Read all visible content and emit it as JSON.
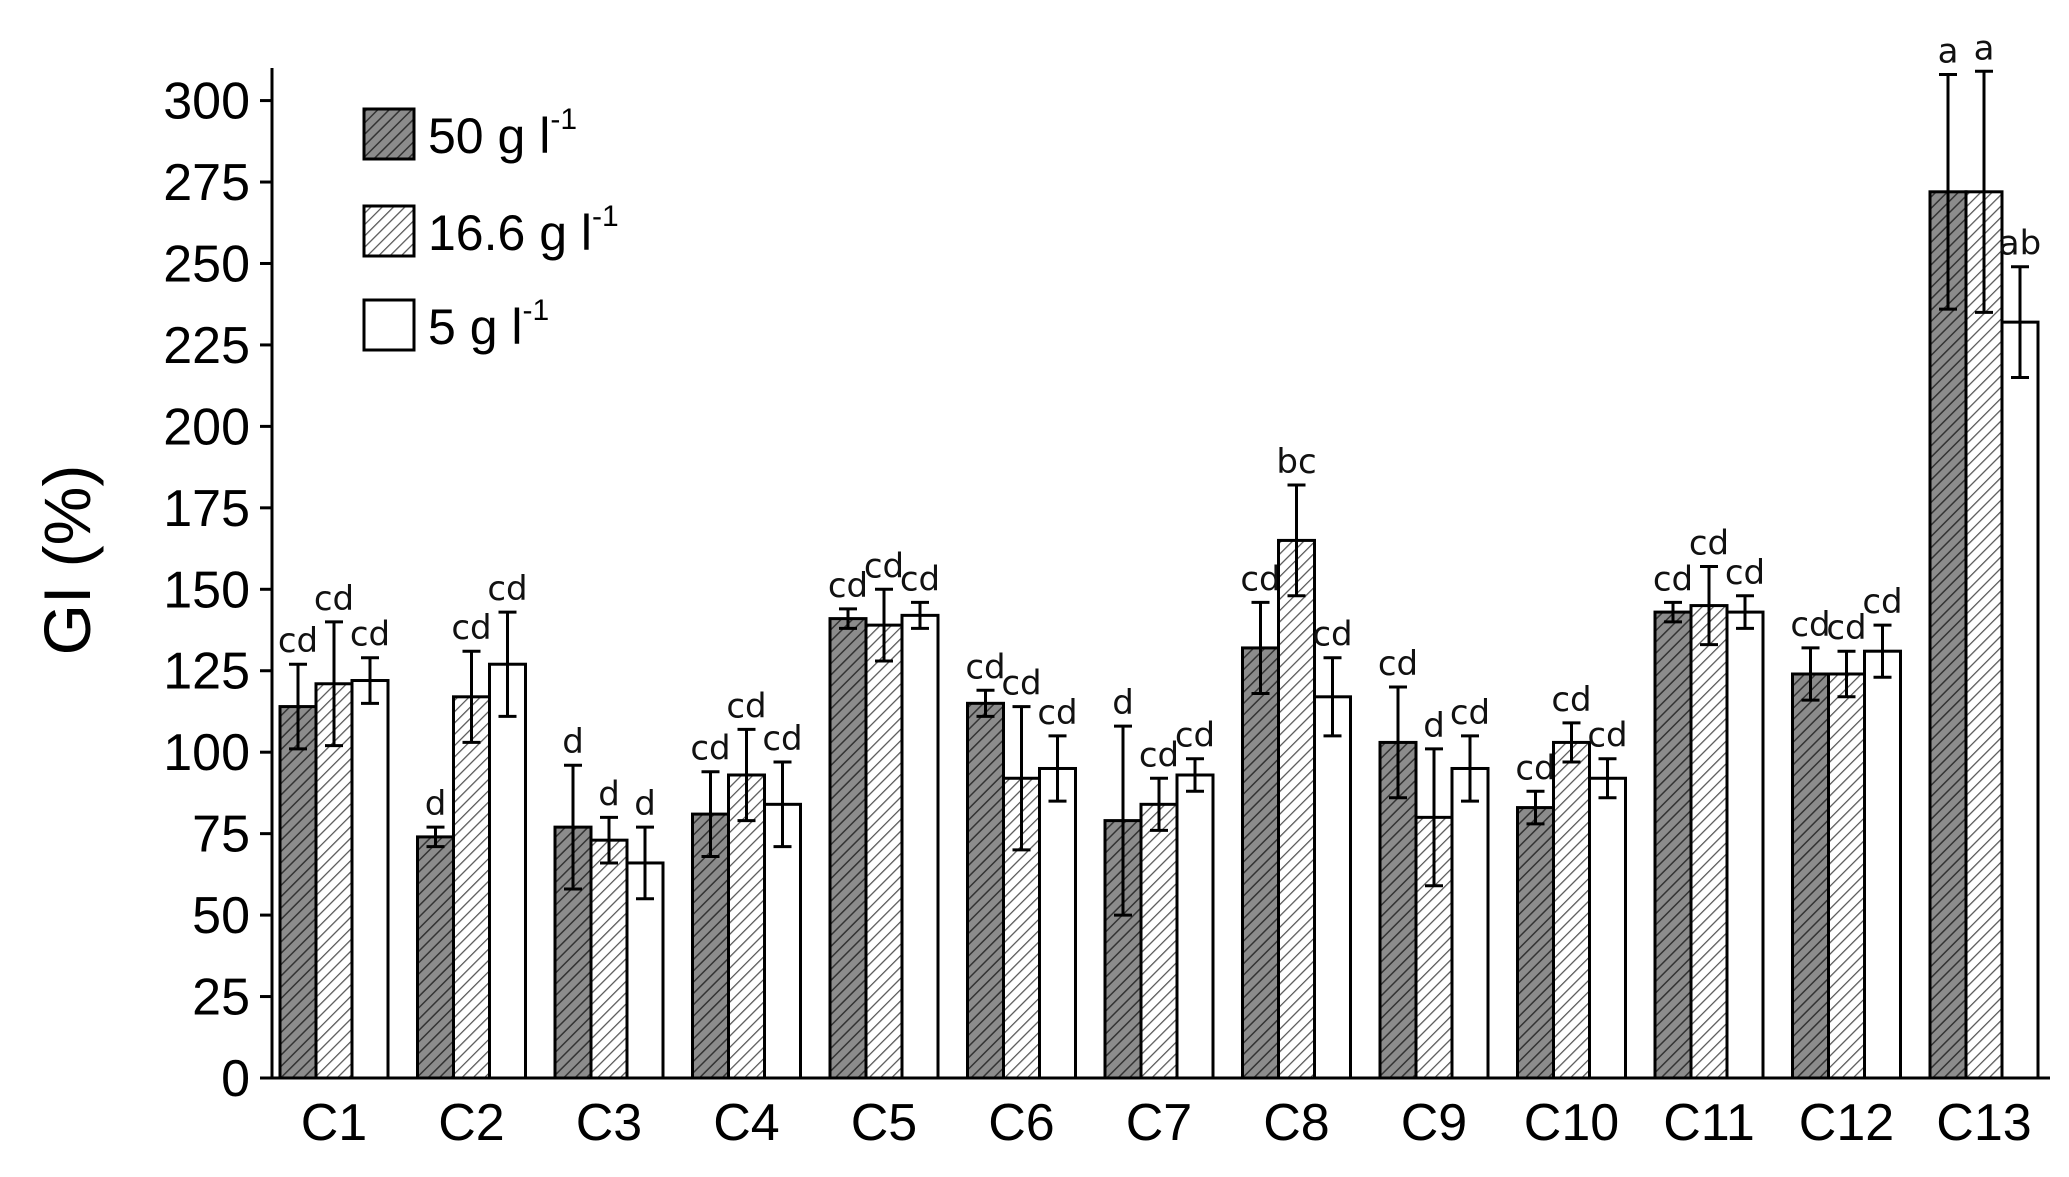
{
  "chart_data": {
    "type": "bar",
    "ylabel": "GI (%)",
    "xlabel": "",
    "ylim": [
      0,
      310
    ],
    "yticks": [
      0,
      25,
      50,
      75,
      100,
      125,
      150,
      175,
      200,
      225,
      250,
      275,
      300
    ],
    "categories": [
      "C1",
      "C2",
      "C3",
      "C4",
      "C5",
      "C6",
      "C7",
      "C8",
      "C9",
      "C10",
      "C11",
      "C12",
      "C13"
    ],
    "legend_position": "top-left",
    "series": [
      {
        "name": "50 g l",
        "name_sup": "-1",
        "pattern": "dark-hatch",
        "fill_color": "#8c8c8c",
        "values": [
          114,
          74,
          77,
          81,
          141,
          115,
          79,
          132,
          103,
          83,
          143,
          124,
          272
        ],
        "errors": [
          13,
          3,
          19,
          13,
          3,
          4,
          29,
          14,
          17,
          5,
          3,
          8,
          36
        ],
        "labels": [
          "cd",
          "d",
          "d",
          "cd",
          "cd",
          "cd",
          "d",
          "cd",
          "cd",
          "cd",
          "cd",
          "cd",
          "a"
        ]
      },
      {
        "name": "16.6 g l",
        "name_sup": "-1",
        "pattern": "light-hatch",
        "fill_color": "#ffffff",
        "values": [
          121,
          117,
          73,
          93,
          139,
          92,
          84,
          165,
          80,
          103,
          145,
          124,
          272
        ],
        "errors": [
          19,
          14,
          7,
          14,
          11,
          22,
          8,
          17,
          21,
          6,
          12,
          7,
          37
        ],
        "labels": [
          "cd",
          "cd",
          "d",
          "cd",
          "cd",
          "cd",
          "cd",
          "bc",
          "d",
          "cd",
          "cd",
          "cd",
          "a"
        ]
      },
      {
        "name": "5 g l",
        "name_sup": "-1",
        "pattern": "none",
        "fill_color": "#ffffff",
        "values": [
          122,
          127,
          66,
          84,
          142,
          95,
          93,
          117,
          95,
          92,
          143,
          131,
          232
        ],
        "errors": [
          7,
          16,
          11,
          13,
          4,
          10,
          5,
          12,
          10,
          6,
          5,
          8,
          17
        ],
        "labels": [
          "cd",
          "cd",
          "d",
          "cd",
          "cd",
          "cd",
          "cd",
          "cd",
          "cd",
          "cd",
          "cd",
          "cd",
          "ab"
        ]
      }
    ]
  }
}
